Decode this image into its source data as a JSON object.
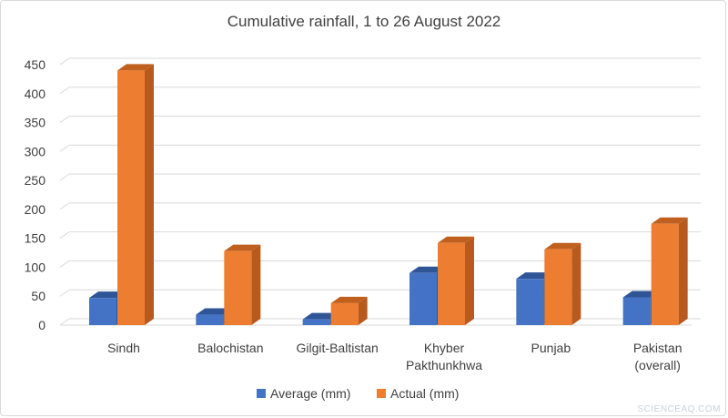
{
  "chart_data": {
    "type": "bar",
    "title": "Cumulative rainfall, 1 to 26 August 2022",
    "categories": [
      [
        "Sindh"
      ],
      [
        "Balochistan"
      ],
      [
        "Gilgit-Baltistan"
      ],
      [
        "Khyber",
        "Pakthunkhwa"
      ],
      [
        "Punjab"
      ],
      [
        "Pakistan",
        "(overall)"
      ]
    ],
    "series": [
      {
        "name": "Average (mm)",
        "values": [
          47,
          18,
          10,
          90,
          80,
          48
        ],
        "color": "#4472c4",
        "side_color": "#2e5597",
        "top_color": "#2f5597"
      },
      {
        "name": "Actual (mm)",
        "values": [
          440,
          128,
          38,
          142,
          131,
          175
        ],
        "color": "#ed7d31",
        "side_color": "#b85a1d",
        "top_color": "#c0601f"
      }
    ],
    "ylim": [
      0,
      450
    ],
    "yticks": [
      0,
      50,
      100,
      150,
      200,
      250,
      300,
      350,
      400,
      450
    ],
    "xlabel": "",
    "ylabel": "",
    "grid": true,
    "legend_position": "bottom"
  },
  "watermark": "SCIENCEAQ.COM"
}
